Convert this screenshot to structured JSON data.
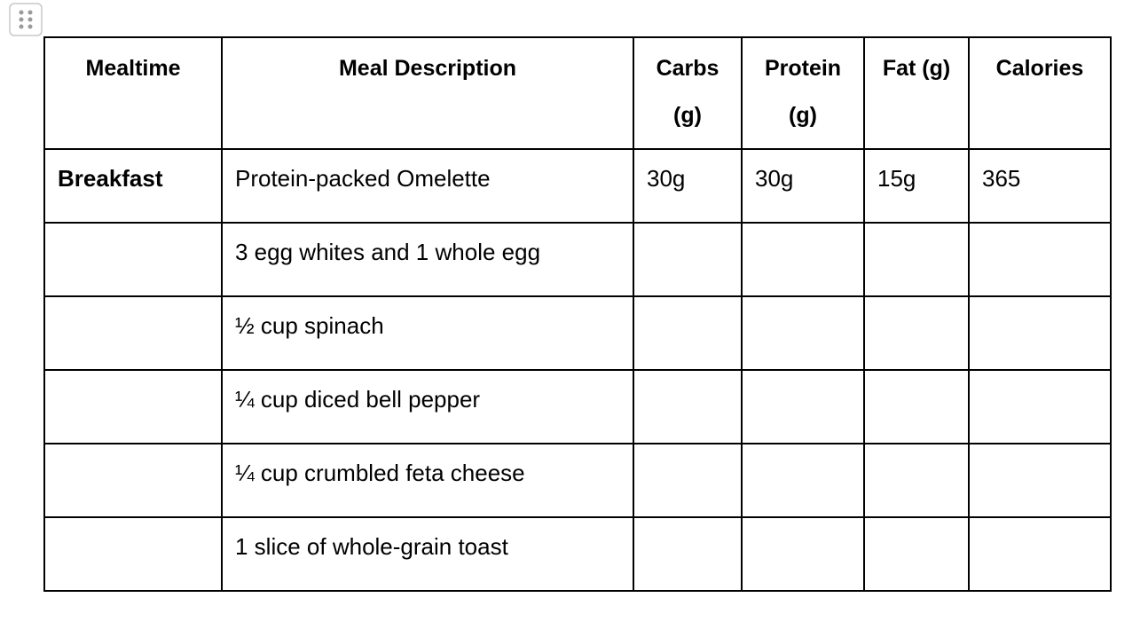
{
  "table": {
    "header": [
      "Mealtime",
      "Meal Description",
      "Carbs (g)",
      "Protein (g)",
      "Fat (g)",
      "Calories"
    ],
    "rows": [
      {
        "mealtime": "Breakfast",
        "description": "Protein-packed Omelette",
        "carbs": "30g",
        "protein": "30g",
        "fat": "15g",
        "calories": "365"
      },
      {
        "description": "3 egg whites and 1 whole egg"
      },
      {
        "description": "½ cup spinach"
      },
      {
        "description": "¼ cup diced bell pepper"
      },
      {
        "description": "¼ cup crumbled feta cheese"
      },
      {
        "description": "1 slice of whole-grain toast"
      }
    ]
  }
}
